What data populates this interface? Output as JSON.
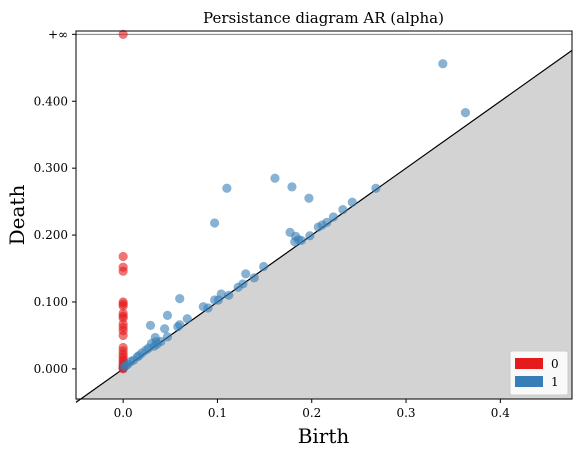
{
  "chart_data": {
    "type": "scatter",
    "title": "Persistance diagram AR (alpha)",
    "xlabel": "Birth",
    "ylabel": "Death",
    "xlim": [
      -0.05,
      0.476
    ],
    "ylim": [
      -0.045,
      0.505
    ],
    "x_ticks": [
      0.0,
      0.1,
      0.2,
      0.3,
      0.4
    ],
    "x_tick_labels": [
      "0.0",
      "0.1",
      "0.2",
      "0.3",
      "0.4"
    ],
    "y_ticks": [
      0.0,
      0.1,
      0.2,
      0.3,
      0.4
    ],
    "y_tick_labels": [
      "0.000",
      "0.100",
      "0.200",
      "0.300",
      "0.400"
    ],
    "infinity_value": 0.5,
    "infinity_label": "+∞",
    "diagonal_shaded": true,
    "grid": false,
    "legend_position": "bottom-right",
    "colors": {
      "series_0": "#e41a1c",
      "series_1": "#377eb8",
      "diagonal_fill": "#d3d3d3",
      "infinity_line": "#808080"
    },
    "series": [
      {
        "name": "0",
        "points": [
          [
            0.0,
            0.5
          ],
          [
            0.0,
            0.168
          ],
          [
            0.0,
            0.152
          ],
          [
            0.0,
            0.146
          ],
          [
            0.0,
            0.1
          ],
          [
            0.0,
            0.097
          ],
          [
            0.0,
            0.094
          ],
          [
            0.0,
            0.083
          ],
          [
            0.0,
            0.079
          ],
          [
            0.0,
            0.076
          ],
          [
            0.0,
            0.067
          ],
          [
            0.0,
            0.062
          ],
          [
            0.0,
            0.057
          ],
          [
            0.0,
            0.05
          ],
          [
            0.0,
            0.032
          ],
          [
            0.0,
            0.027
          ],
          [
            0.0,
            0.022
          ],
          [
            0.0,
            0.018
          ],
          [
            0.0,
            0.014
          ],
          [
            0.0,
            0.011
          ],
          [
            0.0,
            0.008
          ],
          [
            0.0,
            0.005
          ],
          [
            0.0,
            0.003
          ],
          [
            0.0,
            0.002
          ],
          [
            0.0,
            0.001
          ],
          [
            0.0,
            0.0
          ]
        ]
      },
      {
        "name": "1",
        "points": [
          [
            0.339,
            0.456
          ],
          [
            0.363,
            0.383
          ],
          [
            0.161,
            0.285
          ],
          [
            0.179,
            0.272
          ],
          [
            0.197,
            0.255
          ],
          [
            0.11,
            0.27
          ],
          [
            0.097,
            0.218
          ],
          [
            0.268,
            0.27
          ],
          [
            0.243,
            0.249
          ],
          [
            0.233,
            0.238
          ],
          [
            0.223,
            0.227
          ],
          [
            0.216,
            0.219
          ],
          [
            0.211,
            0.215
          ],
          [
            0.207,
            0.212
          ],
          [
            0.177,
            0.204
          ],
          [
            0.183,
            0.198
          ],
          [
            0.186,
            0.193
          ],
          [
            0.189,
            0.192
          ],
          [
            0.182,
            0.19
          ],
          [
            0.198,
            0.199
          ],
          [
            0.149,
            0.153
          ],
          [
            0.13,
            0.142
          ],
          [
            0.139,
            0.136
          ],
          [
            0.127,
            0.127
          ],
          [
            0.122,
            0.122
          ],
          [
            0.112,
            0.11
          ],
          [
            0.104,
            0.112
          ],
          [
            0.097,
            0.103
          ],
          [
            0.101,
            0.103
          ],
          [
            0.09,
            0.091
          ],
          [
            0.085,
            0.093
          ],
          [
            0.068,
            0.075
          ],
          [
            0.06,
            0.105
          ],
          [
            0.047,
            0.08
          ],
          [
            0.06,
            0.066
          ],
          [
            0.029,
            0.065
          ],
          [
            0.044,
            0.06
          ],
          [
            0.058,
            0.063
          ],
          [
            0.047,
            0.048
          ],
          [
            0.034,
            0.047
          ],
          [
            0.035,
            0.041
          ],
          [
            0.03,
            0.038
          ],
          [
            0.04,
            0.041
          ],
          [
            0.036,
            0.037
          ],
          [
            0.033,
            0.034
          ],
          [
            0.027,
            0.031
          ],
          [
            0.024,
            0.028
          ],
          [
            0.02,
            0.024
          ],
          [
            0.017,
            0.02
          ],
          [
            0.015,
            0.018
          ],
          [
            0.011,
            0.013
          ],
          [
            0.008,
            0.011
          ],
          [
            0.005,
            0.007
          ],
          [
            0.003,
            0.005
          ],
          [
            0.001,
            0.003
          ]
        ]
      }
    ]
  }
}
